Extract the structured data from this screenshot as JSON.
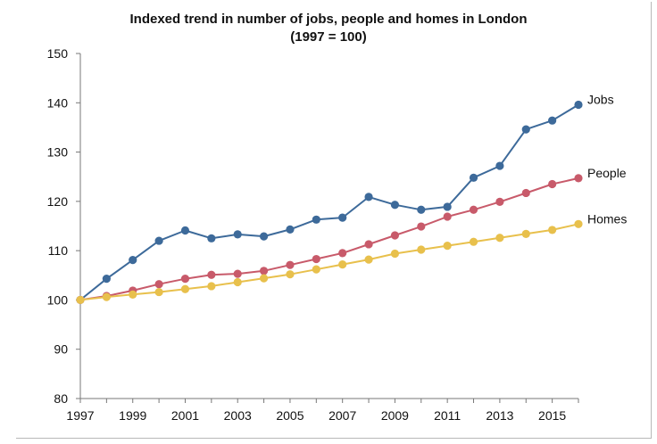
{
  "chart_data": {
    "type": "line",
    "title": "Indexed trend in number of jobs, people and homes in London",
    "subtitle": "(1997 = 100)",
    "xlabel": "",
    "ylabel": "",
    "x": [
      1997,
      1998,
      1999,
      2000,
      2001,
      2002,
      2003,
      2004,
      2005,
      2006,
      2007,
      2008,
      2009,
      2010,
      2011,
      2012,
      2013,
      2014,
      2015,
      2016
    ],
    "x_tick_labels": [
      "1997",
      "1999",
      "2001",
      "2003",
      "2005",
      "2007",
      "2009",
      "2011",
      "2013",
      "2015"
    ],
    "x_tick_values": [
      1997,
      1999,
      2001,
      2003,
      2005,
      2007,
      2009,
      2011,
      2013,
      2015
    ],
    "y_tick_labels": [
      "80",
      "90",
      "100",
      "110",
      "120",
      "130",
      "140",
      "150"
    ],
    "y_tick_values": [
      80,
      90,
      100,
      110,
      120,
      130,
      140,
      150
    ],
    "xlim": [
      1997,
      2016
    ],
    "ylim": [
      80,
      150
    ],
    "grid": false,
    "legend": "inline-right",
    "series": [
      {
        "name": "Jobs",
        "color": "#3d6a9a",
        "values": [
          100.0,
          104.3,
          108.1,
          112.0,
          114.1,
          112.5,
          113.3,
          112.9,
          114.3,
          116.3,
          116.7,
          120.9,
          119.3,
          118.3,
          118.9,
          124.8,
          127.2,
          134.6,
          136.4,
          139.6
        ]
      },
      {
        "name": "People",
        "color": "#c85a6a",
        "values": [
          100.0,
          100.8,
          101.9,
          103.2,
          104.3,
          105.1,
          105.3,
          105.9,
          107.1,
          108.3,
          109.5,
          111.3,
          113.1,
          114.9,
          116.9,
          118.3,
          119.9,
          121.7,
          123.5,
          124.7
        ]
      },
      {
        "name": "Homes",
        "color": "#e8c04c",
        "values": [
          100.0,
          100.6,
          101.1,
          101.6,
          102.2,
          102.8,
          103.6,
          104.4,
          105.2,
          106.2,
          107.2,
          108.2,
          109.4,
          110.2,
          111.0,
          111.8,
          112.6,
          113.4,
          114.2,
          115.4
        ]
      }
    ]
  }
}
